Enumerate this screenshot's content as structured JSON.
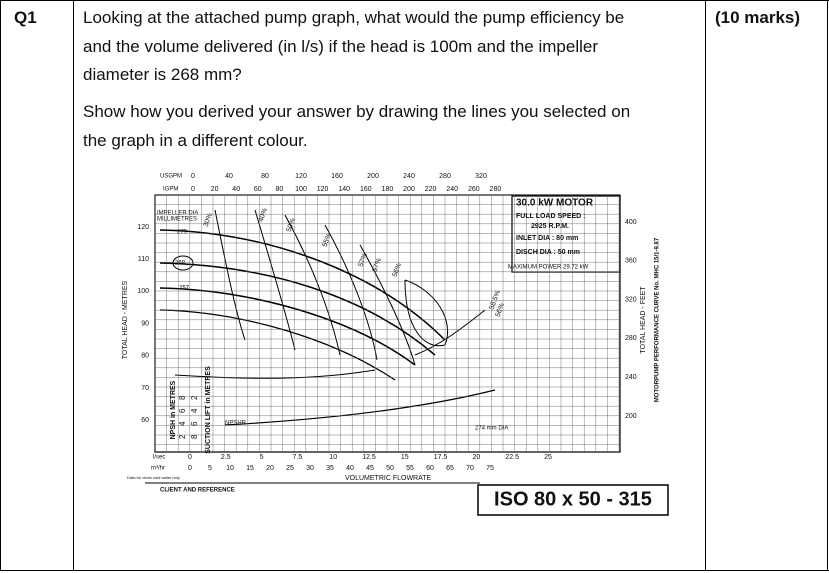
{
  "question": {
    "number": "Q1",
    "marks": "(10 marks)",
    "lines": [
      "Looking at the attached pump graph, what would the pump efficiency be",
      "and the volume delivered (in l/s) if the head is 100m and the impeller",
      "diameter is 268 mm?",
      "Show how you derived your answer by drawing the lines you selected on",
      "the graph in a different colour."
    ]
  },
  "graph": {
    "usgpm_label": "USGPM",
    "usgpm_ticks": [
      "0",
      "40",
      "80",
      "120",
      "160",
      "200",
      "240",
      "280",
      "320"
    ],
    "igpm_label": "IGPM",
    "igpm_ticks": [
      "0",
      "20",
      "40",
      "60",
      "80",
      "100",
      "120",
      "140",
      "160",
      "180",
      "200",
      "220",
      "240",
      "260",
      "280"
    ],
    "head_label": "TOTAL HEAD - METRES",
    "head_ticks": [
      "120",
      "110",
      "100",
      "90",
      "80",
      "70",
      "60"
    ],
    "feet_label": "TOTAL HEAD - FEET",
    "feet_ticks": [
      "400",
      "360",
      "320",
      "280",
      "240",
      "200"
    ],
    "lsec_label": "l/sec",
    "lsec_ticks": [
      "0",
      "2.5",
      "5",
      "7.5",
      "10",
      "12.5",
      "15",
      "17.5",
      "20",
      "22.5",
      "25"
    ],
    "m3hr_label": "m³/hr",
    "m3hr_ticks": [
      "0",
      "5",
      "10",
      "15",
      "20",
      "25",
      "30",
      "35",
      "40",
      "45",
      "50",
      "55",
      "60",
      "65",
      "70",
      "75"
    ],
    "x_label": "VOLUMETRIC FLOWRATE",
    "note": "Data for clean cold water only",
    "impeller_label": [
      "IMPELLER DIA",
      "MILLIMETRES"
    ],
    "diameters": [
      "279",
      "268",
      "257"
    ],
    "dia_274": "274 mm DIA",
    "efficiencies": [
      "30%",
      "40%",
      "50%",
      "55%",
      "57%",
      "57%",
      "56%",
      "58.5%",
      "56%"
    ],
    "npshr": "NPSHR",
    "npsh_label": "NPSH in METRES",
    "npsh_ticks": [
      "8",
      "6",
      "4",
      "2"
    ],
    "suction_label": "SUCTION LIFT in METRES",
    "suction_ticks": [
      "2",
      "4",
      "6",
      "8"
    ],
    "motor": [
      "30.0 kW MOTOR",
      "FULL LOAD SPEED :",
      "2925 R.P.M.",
      "INLET DIA : 80 mm",
      "DISCH DIA : 50 mm",
      "MAXIMUM POWER 29.72 kW"
    ],
    "curve_no": "MOTORPUMP PERFORMANCE CURVE No. MHC 15/1-9.87",
    "client": "CLIENT AND REFERENCE",
    "model": "ISO 80 x 50 - 315"
  }
}
